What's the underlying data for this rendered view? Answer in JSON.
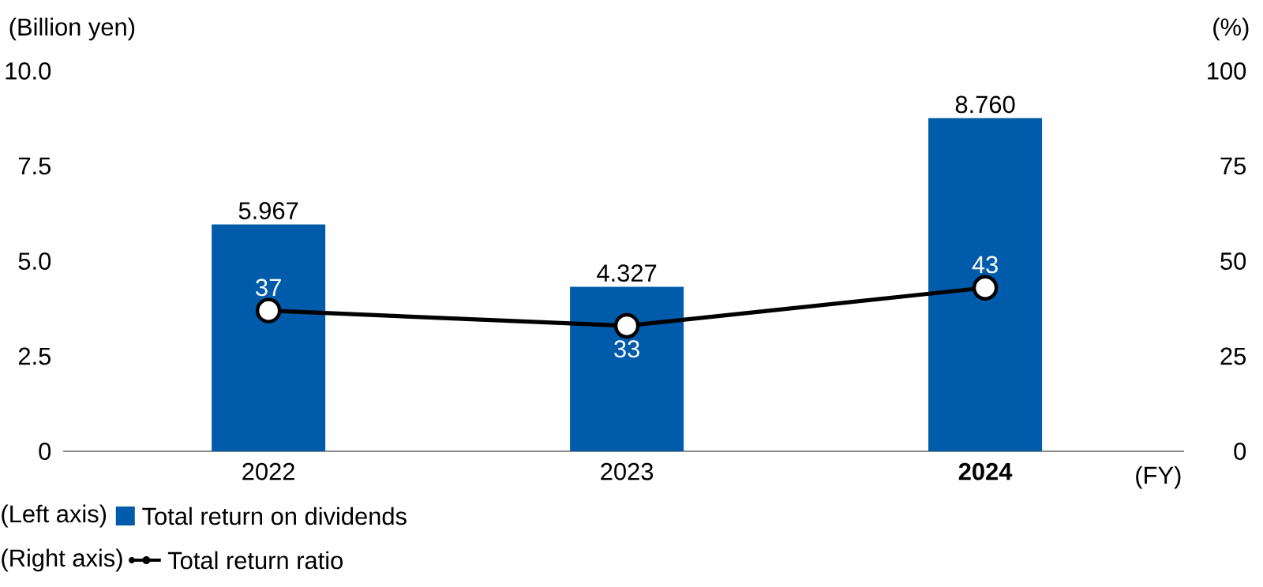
{
  "chart_data": {
    "type": "bar",
    "xlabel": "(FY)",
    "ylabel": "(Billion yen)",
    "y2label": "(%)",
    "categories": [
      "2022",
      "2023",
      "**2024**"
    ],
    "ylim": [
      0,
      10
    ],
    "yticks": [
      0,
      2.5,
      {
        "value": 5,
        "label": "5.0"
      },
      7.5,
      {
        "value": 10,
        "label": "10.0"
      }
    ],
    "y2lim": [
      0,
      100
    ],
    "y2ticks": [
      0,
      25,
      50,
      75,
      100
    ],
    "series": [
      {
        "name": "Total return on dividends",
        "color": "#005bab",
        "values": [
          5.967,
          4.327,
          8.76
        ],
        "value_labels": [
          "5.967",
          "4.327",
          "8.760"
        ]
      },
      {
        "name": "Total return ratio",
        "type": "line",
        "axis": "y2",
        "color": "#000000",
        "values": [
          37,
          33,
          43
        ],
        "value_labels": [
          "37",
          "33",
          "43"
        ]
      }
    ],
    "marker": "circle",
    "legend": "bottom left",
    "annotations": [
      "(Left axis)",
      "(Right axis)"
    ]
  }
}
